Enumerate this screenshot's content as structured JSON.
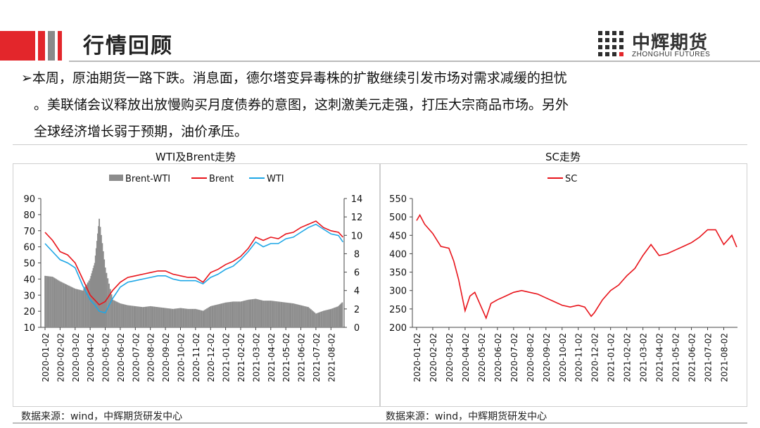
{
  "header": {
    "title": "行情回顾",
    "logo_cn": "中辉期货",
    "logo_en": "ZHONGHUI FUTURES"
  },
  "summary": {
    "line1": "➢本周，原油期货一路下跌。消息面，德尔塔变异毒株的扩散继续引发市场对需求减缓的担忧",
    "line2": "。美联储会议释放出放慢购买月度债券的意图，这刺激美元走强，打压大宗商品市场。另外",
    "line3": "全球经济增长弱于预期，油价承压。"
  },
  "colors": {
    "accent_red": "#e3262b",
    "brent": "#e8141b",
    "wti": "#1fa7e6",
    "spread": "#8c8c8c"
  },
  "sources": {
    "left": "数据来源：wind，中辉期货研发中心",
    "right": "数据来源：wind，中辉期货研发中心"
  },
  "chart_data": [
    {
      "type": "line",
      "title": "WTI及Brent走势",
      "x_ticks": [
        "2020-01-02",
        "2020-02-02",
        "2020-03-02",
        "2020-04-02",
        "2020-05-02",
        "2020-06-02",
        "2020-07-02",
        "2020-08-02",
        "2020-09-02",
        "2020-10-02",
        "2020-11-02",
        "2020-12-02",
        "2021-01-02",
        "2021-02-02",
        "2021-03-02",
        "2021-04-02",
        "2021-05-02",
        "2021-06-02",
        "2021-07-02",
        "2021-08-02"
      ],
      "y_left_ticks": [
        "90",
        "80",
        "70",
        "60",
        "50",
        "40",
        "30",
        "20",
        "10"
      ],
      "y_right_ticks": [
        "14",
        "12",
        "10",
        "8",
        "6",
        "4",
        "2",
        "0"
      ],
      "ylim_left": [
        10,
        90
      ],
      "ylim_right": [
        0,
        14
      ],
      "legend": [
        "Brent-WTI",
        "Brent",
        "WTI"
      ],
      "legend_position": "top",
      "x_months": [
        0,
        0.5,
        1,
        1.5,
        2,
        2.5,
        3,
        3.3,
        3.6,
        4,
        4.5,
        5,
        5.5,
        6,
        6.5,
        7,
        7.5,
        8,
        8.5,
        9,
        9.5,
        10,
        10.5,
        11,
        11.5,
        12,
        12.5,
        13,
        13.5,
        14,
        14.5,
        15,
        15.5,
        16,
        16.5,
        17,
        17.5,
        18,
        18.5,
        19,
        19.5,
        19.8
      ],
      "series": [
        {
          "name": "Brent",
          "axis": "left",
          "values": [
            69,
            64,
            57,
            55,
            50,
            40,
            30,
            27,
            24,
            26,
            33,
            38,
            41,
            42,
            43,
            44,
            45,
            45,
            43,
            42,
            41,
            41,
            38,
            44,
            46,
            49,
            51,
            54,
            59,
            66,
            64,
            66,
            65,
            68,
            69,
            72,
            74,
            76,
            72,
            70,
            69,
            66
          ]
        },
        {
          "name": "WTI",
          "axis": "left",
          "values": [
            62,
            57,
            52,
            50,
            47,
            36,
            27,
            24,
            20,
            19,
            28,
            35,
            38,
            39,
            40,
            41,
            42,
            42,
            40,
            39,
            39,
            39,
            37,
            41,
            43,
            46,
            48,
            52,
            57,
            63,
            60,
            62,
            62,
            65,
            66,
            69,
            72,
            74,
            71,
            68,
            67,
            63
          ]
        },
        {
          "name": "Brent-WTI",
          "axis": "right",
          "type": "bar",
          "values": [
            5.6,
            5.5,
            5.0,
            4.6,
            4.2,
            4.0,
            5.3,
            7.0,
            11.8,
            6.5,
            3.0,
            2.6,
            2.4,
            2.3,
            2.2,
            2.3,
            2.2,
            2.1,
            2.0,
            2.1,
            2.0,
            2.0,
            1.8,
            2.3,
            2.5,
            2.7,
            2.8,
            2.8,
            3.0,
            3.1,
            2.9,
            2.9,
            2.8,
            2.7,
            2.6,
            2.4,
            2.2,
            1.5,
            1.8,
            2.0,
            2.3,
            2.8
          ]
        }
      ]
    },
    {
      "type": "line",
      "title": "SC走势",
      "x_ticks": [
        "2020-01-02",
        "2020-02-02",
        "2020-03-02",
        "2020-04-02",
        "2020-05-02",
        "2020-06-02",
        "2020-07-02",
        "2020-08-02",
        "2020-09-02",
        "2020-10-02",
        "2020-11-02",
        "2020-12-02",
        "2021-01-02",
        "2021-02-02",
        "2021-03-02",
        "2021-04-02",
        "2021-05-02",
        "2021-06-02",
        "2021-07-02",
        "2021-08-02"
      ],
      "y_ticks": [
        "550",
        "500",
        "450",
        "400",
        "350",
        "300",
        "250",
        "200"
      ],
      "ylim": [
        200,
        550
      ],
      "legend": [
        "SC"
      ],
      "legend_position": "top",
      "x_months": [
        0,
        0.2,
        0.5,
        1,
        1.5,
        2,
        2.3,
        2.6,
        3,
        3.3,
        3.6,
        4,
        4.3,
        4.6,
        5,
        5.5,
        6,
        6.5,
        7,
        7.5,
        8,
        8.5,
        9,
        9.5,
        10,
        10.4,
        10.8,
        11,
        11.5,
        12,
        12.5,
        13,
        13.5,
        14,
        14.5,
        15,
        15.5,
        16,
        16.5,
        17,
        17.5,
        18,
        18.5,
        19,
        19.5,
        19.8
      ],
      "series": [
        {
          "name": "SC",
          "values": [
            490,
            505,
            480,
            455,
            420,
            415,
            380,
            330,
            245,
            285,
            295,
            255,
            225,
            265,
            275,
            285,
            295,
            300,
            295,
            290,
            280,
            270,
            260,
            255,
            260,
            255,
            230,
            240,
            275,
            300,
            315,
            340,
            360,
            395,
            425,
            395,
            400,
            410,
            420,
            430,
            445,
            465,
            465,
            425,
            450,
            418
          ]
        }
      ]
    }
  ]
}
